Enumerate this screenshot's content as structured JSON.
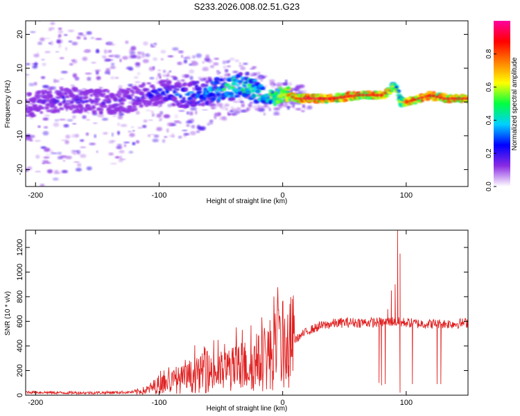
{
  "figure_title": "S233.2026.008.02.51.G23",
  "chart_data": [
    {
      "type": "heatmap",
      "title": "S233.2026.008.02.51.G23",
      "xlabel": "Height of straight line (km)",
      "ylabel": "Frequency (Hz)",
      "xlim": [
        -208,
        150
      ],
      "ylim": [
        -25,
        24
      ],
      "xticks": [
        -200,
        -100,
        0,
        100
      ],
      "yticks": [
        -20,
        -10,
        0,
        10,
        20
      ],
      "colorbar": {
        "label": "Normalized spectral amplitude",
        "range": [
          0,
          1
        ],
        "ticks": [
          0.0,
          0.2,
          0.4,
          0.6,
          0.8
        ],
        "colors": [
          "#ffffff",
          "#8a2be2",
          "#0000ff",
          "#00d0ff",
          "#00ff40",
          "#ffff00",
          "#ff8000",
          "#ff0000",
          "#ff00a0"
        ]
      },
      "ridge": {
        "description": "dominant frequency track (Hz) vs height (km)",
        "x": [
          -208,
          -180,
          -160,
          -140,
          -120,
          -100,
          -80,
          -60,
          -45,
          -35,
          -25,
          -15,
          -5,
          0,
          5,
          10,
          20,
          40,
          60,
          80,
          85,
          90,
          95,
          100,
          110,
          120,
          130,
          150
        ],
        "y": [
          -1,
          1,
          0,
          0,
          1,
          3,
          2,
          3,
          4,
          5,
          4,
          2,
          1,
          3,
          2,
          1,
          1,
          1,
          2,
          2,
          3,
          5,
          0,
          0,
          1,
          2,
          1,
          1
        ],
        "amplitude": [
          0.15,
          0.25,
          0.2,
          0.2,
          0.2,
          0.3,
          0.35,
          0.45,
          0.55,
          0.6,
          0.6,
          0.5,
          0.7,
          0.7,
          0.8,
          0.85,
          0.95,
          0.9,
          0.9,
          0.9,
          0.8,
          0.6,
          0.6,
          0.85,
          0.9,
          0.9,
          0.9,
          0.9
        ]
      }
    },
    {
      "type": "line",
      "xlabel": "Height of straight line (km)",
      "ylabel": "SNR (10 * v/v)",
      "xlim": [
        -208,
        150
      ],
      "ylim": [
        0,
        1340
      ],
      "xticks": [
        -200,
        -100,
        0,
        100
      ],
      "yticks": [
        0,
        200,
        400,
        600,
        800,
        1000,
        1200
      ],
      "series": [
        {
          "name": "SNR",
          "color": "#e02020",
          "x": [
            -208,
            -180,
            -150,
            -120,
            -110,
            -100,
            -90,
            -80,
            -70,
            -60,
            -50,
            -40,
            -30,
            -20,
            -10,
            0,
            10,
            20,
            30,
            40,
            50,
            60,
            70,
            80,
            90,
            95,
            100,
            110,
            120,
            130,
            140,
            150
          ],
          "y": [
            25,
            20,
            20,
            25,
            40,
            90,
            110,
            130,
            160,
            180,
            190,
            210,
            240,
            260,
            340,
            400,
            450,
            520,
            560,
            580,
            590,
            590,
            590,
            590,
            600,
            590,
            590,
            580,
            580,
            580,
            580,
            590
          ],
          "spikes": [
            {
              "x": 93,
              "y": 1340
            },
            {
              "x": 95,
              "y": 1150
            },
            {
              "x": 91,
              "y": 900
            },
            {
              "x": 88,
              "y": 850
            },
            {
              "x": 85,
              "y": 700
            },
            {
              "x": 78,
              "y": 100
            },
            {
              "x": 80,
              "y": 80
            },
            {
              "x": 83,
              "y": 90
            },
            {
              "x": 95,
              "y": 20
            },
            {
              "x": 105,
              "y": 90
            },
            {
              "x": 125,
              "y": 90
            },
            {
              "x": 128,
              "y": 90
            },
            {
              "x": -65,
              "y": 340
            },
            {
              "x": -58,
              "y": 300
            },
            {
              "x": -45,
              "y": 340
            },
            {
              "x": -30,
              "y": 360
            },
            {
              "x": -12,
              "y": 470
            },
            {
              "x": -10,
              "y": 50
            },
            {
              "x": 5,
              "y": 60
            }
          ]
        }
      ]
    }
  ]
}
